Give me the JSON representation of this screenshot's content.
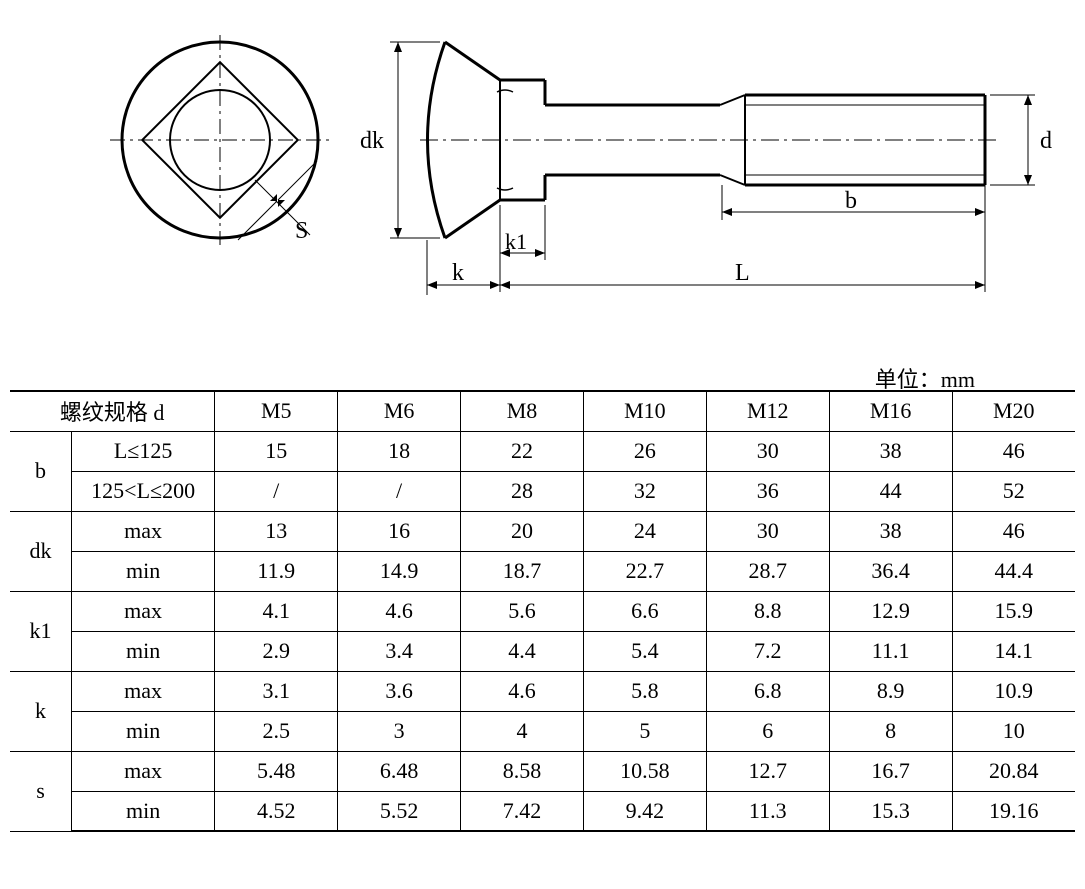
{
  "diagram": {
    "labels": {
      "dk": "dk",
      "s": "S",
      "k": "k",
      "k1": "k1",
      "L": "L",
      "b": "b",
      "d": "d"
    },
    "stroke_color": "#000000",
    "stroke_width": 2,
    "thin_stroke_width": 1,
    "font_size": 22
  },
  "table": {
    "unit_label": "单位：mm",
    "header_label": "螺纹规格 d",
    "columns": [
      "M5",
      "M6",
      "M8",
      "M10",
      "M12",
      "M16",
      "M20"
    ],
    "rows": [
      {
        "label": "b",
        "sub": [
          {
            "sublabel": "L≤125",
            "values": [
              "15",
              "18",
              "22",
              "26",
              "30",
              "38",
              "46"
            ]
          },
          {
            "sublabel": "125<L≤200",
            "values": [
              "/",
              "/",
              "28",
              "32",
              "36",
              "44",
              "52"
            ]
          }
        ]
      },
      {
        "label": "dk",
        "sub": [
          {
            "sublabel": "max",
            "values": [
              "13",
              "16",
              "20",
              "24",
              "30",
              "38",
              "46"
            ]
          },
          {
            "sublabel": "min",
            "values": [
              "11.9",
              "14.9",
              "18.7",
              "22.7",
              "28.7",
              "36.4",
              "44.4"
            ]
          }
        ]
      },
      {
        "label": "k1",
        "sub": [
          {
            "sublabel": "max",
            "values": [
              "4.1",
              "4.6",
              "5.6",
              "6.6",
              "8.8",
              "12.9",
              "15.9"
            ]
          },
          {
            "sublabel": "min",
            "values": [
              "2.9",
              "3.4",
              "4.4",
              "5.4",
              "7.2",
              "11.1",
              "14.1"
            ]
          }
        ]
      },
      {
        "label": "k",
        "sub": [
          {
            "sublabel": "max",
            "values": [
              "3.1",
              "3.6",
              "4.6",
              "5.8",
              "6.8",
              "8.9",
              "10.9"
            ]
          },
          {
            "sublabel": "min",
            "values": [
              "2.5",
              "3",
              "4",
              "5",
              "6",
              "8",
              "10"
            ]
          }
        ]
      },
      {
        "label": "s",
        "sub": [
          {
            "sublabel": "max",
            "values": [
              "5.48",
              "6.48",
              "8.58",
              "10.58",
              "12.7",
              "16.7",
              "20.84"
            ]
          },
          {
            "sublabel": "min",
            "values": [
              "4.52",
              "5.52",
              "7.42",
              "9.42",
              "11.3",
              "15.3",
              "19.16"
            ]
          }
        ]
      }
    ]
  }
}
